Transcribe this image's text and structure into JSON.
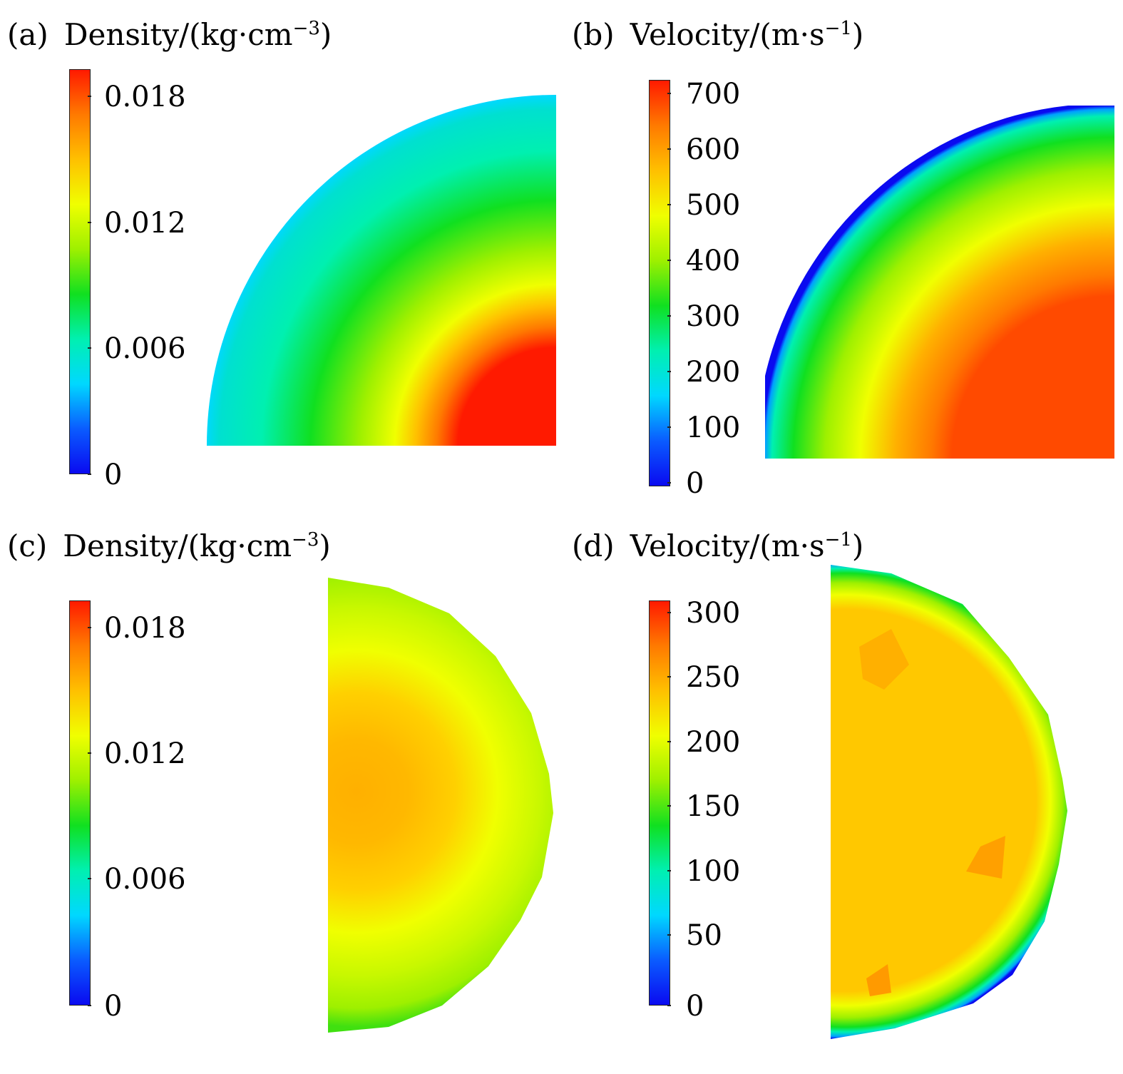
{
  "palette": {
    "jet": [
      "#0a0af0",
      "#0a5cff",
      "#00d8ff",
      "#00f0b0",
      "#10e020",
      "#9ef000",
      "#f0ff00",
      "#ffc000",
      "#ff7a00",
      "#ff1a00"
    ]
  },
  "chart_data": [
    {
      "id": "a",
      "type": "heatmap",
      "label": "(a)",
      "title_base": "Density/(kg·cm",
      "title_exp": "−3",
      "title_close": ")",
      "colorbar": {
        "ticks": [
          "0.018",
          "0.012",
          "0.006",
          "0"
        ],
        "range": [
          0,
          0.0195
        ]
      },
      "shape": "quarter-circle",
      "description_values": {
        "core": 0.019,
        "edge": 0.006
      }
    },
    {
      "id": "b",
      "type": "heatmap",
      "label": "(b)",
      "title_base": "Velocity/(m·s",
      "title_exp": "−1",
      "title_close": ")",
      "colorbar": {
        "ticks": [
          "700",
          "600",
          "500",
          "400",
          "300",
          "200",
          "100",
          "0"
        ],
        "range": [
          0,
          720
        ]
      },
      "shape": "quarter-circle",
      "description_values": {
        "core": 660,
        "edge": 50
      }
    },
    {
      "id": "c",
      "type": "heatmap",
      "label": "(c)",
      "title_base": "Density/(kg·cm",
      "title_exp": "−3",
      "title_close": ")",
      "colorbar": {
        "ticks": [
          "0.018",
          "0.012",
          "0.006",
          "0"
        ],
        "range": [
          0,
          0.0195
        ]
      },
      "shape": "half-circle",
      "description_values": {
        "core": 0.016,
        "edge": 0.011
      }
    },
    {
      "id": "d",
      "type": "heatmap",
      "label": "(d)",
      "title_base": "Velocity/(m·s",
      "title_exp": "−1",
      "title_close": ")",
      "colorbar": {
        "ticks": [
          "300",
          "250",
          "200",
          "150",
          "100",
          "50",
          "0"
        ],
        "range": [
          0,
          310
        ]
      },
      "shape": "half-circle",
      "description_values": {
        "core": 255,
        "edge": 20
      }
    }
  ]
}
